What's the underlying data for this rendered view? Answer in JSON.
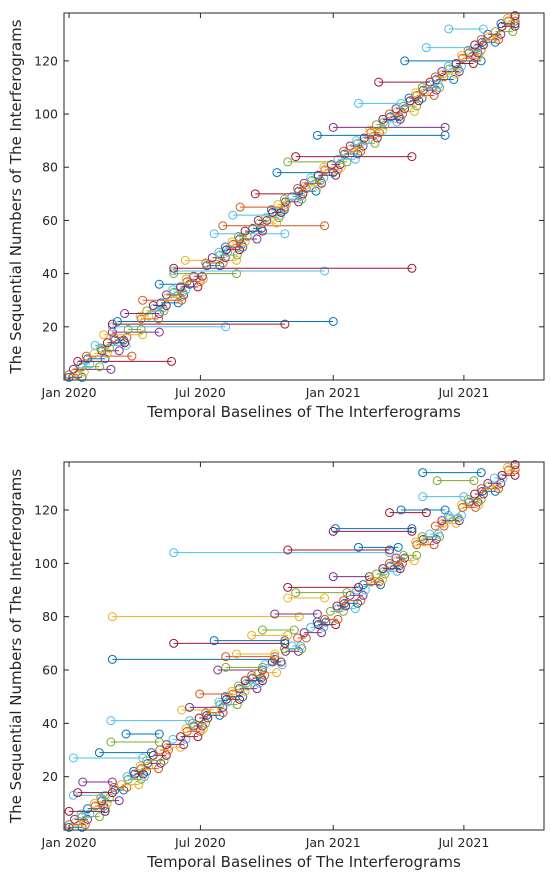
{
  "chart_data": [
    {
      "type": "line",
      "marker": "circle",
      "xlabel": "Temporal Baselines of The Interferograms",
      "ylabel": "The Sequential Numbers of The Interferograms",
      "x_axis_type": "date",
      "xlim": [
        "2019-12-25",
        "2021-10-20"
      ],
      "ylim": [
        0,
        138
      ],
      "x_ticks": [
        "2020-01-01",
        "2020-07-01",
        "2021-01-01",
        "2021-07-01"
      ],
      "x_tick_labels": [
        "Jan 2020",
        "Jul 2020",
        "Jan 2021",
        "Jul 2021"
      ],
      "y_ticks": [
        20,
        40,
        60,
        80,
        100,
        120
      ],
      "grid": false,
      "legend": "none",
      "interferogram_count": 137,
      "acquisition_start": "2020-01-01",
      "acquisition_end": "2021-09-10",
      "segments": [
        {
          "y": 2,
          "start": "2020-01-01",
          "end": "2020-01-13"
        },
        {
          "y": 4,
          "start": "2020-01-07",
          "end": "2020-02-28"
        },
        {
          "y": 7,
          "start": "2020-01-13",
          "end": "2020-05-22"
        },
        {
          "y": 9,
          "start": "2020-01-25",
          "end": "2020-03-28"
        },
        {
          "y": 13,
          "start": "2020-02-06",
          "end": "2020-03-20"
        },
        {
          "y": 17,
          "start": "2020-02-18",
          "end": "2020-04-12"
        },
        {
          "y": 18,
          "start": "2020-03-01",
          "end": "2020-05-05"
        },
        {
          "y": 20,
          "start": "2020-03-01",
          "end": "2020-08-05"
        },
        {
          "y": 21,
          "start": "2020-03-01",
          "end": "2020-10-26"
        },
        {
          "y": 22,
          "start": "2020-03-08",
          "end": "2021-01-01"
        },
        {
          "y": 25,
          "start": "2020-03-18",
          "end": "2020-05-05"
        },
        {
          "y": 30,
          "start": "2020-04-12",
          "end": "2020-06-05"
        },
        {
          "y": 36,
          "start": "2020-05-05",
          "end": "2020-06-16"
        },
        {
          "y": 40,
          "start": "2020-05-25",
          "end": "2020-08-20"
        },
        {
          "y": 41,
          "start": "2020-05-25",
          "end": "2020-12-20"
        },
        {
          "y": 42,
          "start": "2020-05-25",
          "end": "2021-04-20"
        },
        {
          "y": 45,
          "start": "2020-06-10",
          "end": "2020-08-20"
        },
        {
          "y": 55,
          "start": "2020-07-20",
          "end": "2020-10-26"
        },
        {
          "y": 58,
          "start": "2020-08-01",
          "end": "2020-12-20"
        },
        {
          "y": 62,
          "start": "2020-08-15",
          "end": "2020-10-20"
        },
        {
          "y": 65,
          "start": "2020-08-25",
          "end": "2020-10-26"
        },
        {
          "y": 70,
          "start": "2020-09-15",
          "end": "2020-11-20"
        },
        {
          "y": 78,
          "start": "2020-10-15",
          "end": "2021-01-01"
        },
        {
          "y": 82,
          "start": "2020-10-30",
          "end": "2021-01-20"
        },
        {
          "y": 84,
          "start": "2020-11-10",
          "end": "2021-04-20"
        },
        {
          "y": 92,
          "start": "2020-12-10",
          "end": "2021-06-05"
        },
        {
          "y": 95,
          "start": "2021-01-01",
          "end": "2021-06-05"
        },
        {
          "y": 104,
          "start": "2021-02-05",
          "end": "2021-04-05"
        },
        {
          "y": 112,
          "start": "2021-03-05",
          "end": "2021-05-15"
        },
        {
          "y": 120,
          "start": "2021-04-10",
          "end": "2021-07-25"
        },
        {
          "y": 125,
          "start": "2021-05-10",
          "end": "2021-07-20"
        },
        {
          "y": 132,
          "start": "2021-06-10",
          "end": "2021-07-28"
        }
      ]
    },
    {
      "type": "line",
      "marker": "circle",
      "xlabel": "Temporal Baselines of The Interferograms",
      "ylabel": "The Sequential Numbers of The Interferograms",
      "x_axis_type": "date",
      "xlim": [
        "2019-12-25",
        "2021-10-20"
      ],
      "ylim": [
        0,
        138
      ],
      "x_ticks": [
        "2020-01-01",
        "2020-07-01",
        "2021-01-01",
        "2021-07-01"
      ],
      "x_tick_labels": [
        "Jan 2020",
        "Jul 2020",
        "Jan 2021",
        "Jul 2021"
      ],
      "y_ticks": [
        20,
        40,
        60,
        80,
        100,
        120
      ],
      "grid": false,
      "legend": "none",
      "interferogram_count": 137,
      "acquisition_start": "2020-01-01",
      "acquisition_end": "2021-09-10",
      "segments": [
        {
          "y": 7,
          "start": "2020-01-01",
          "end": "2020-02-20"
        },
        {
          "y": 13,
          "start": "2020-01-07",
          "end": "2020-02-20"
        },
        {
          "y": 14,
          "start": "2020-01-13",
          "end": "2020-03-01"
        },
        {
          "y": 18,
          "start": "2020-01-20",
          "end": "2020-03-01"
        },
        {
          "y": 27,
          "start": "2020-01-07",
          "end": "2020-04-12"
        },
        {
          "y": 29,
          "start": "2020-02-12",
          "end": "2020-04-24"
        },
        {
          "y": 33,
          "start": "2020-02-28",
          "end": "2020-05-05"
        },
        {
          "y": 36,
          "start": "2020-03-20",
          "end": "2020-05-05"
        },
        {
          "y": 41,
          "start": "2020-02-28",
          "end": "2020-06-16"
        },
        {
          "y": 45,
          "start": "2020-06-05",
          "end": "2020-07-20"
        },
        {
          "y": 46,
          "start": "2020-06-16",
          "end": "2020-08-01"
        },
        {
          "y": 51,
          "start": "2020-06-30",
          "end": "2020-08-15"
        },
        {
          "y": 60,
          "start": "2020-07-25",
          "end": "2020-09-25"
        },
        {
          "y": 61,
          "start": "2020-08-05",
          "end": "2020-09-25"
        },
        {
          "y": 64,
          "start": "2020-03-01",
          "end": "2020-10-12"
        },
        {
          "y": 65,
          "start": "2020-08-05",
          "end": "2020-10-12"
        },
        {
          "y": 66,
          "start": "2020-08-20",
          "end": "2020-10-12"
        },
        {
          "y": 70,
          "start": "2020-05-25",
          "end": "2020-10-26"
        },
        {
          "y": 71,
          "start": "2020-07-20",
          "end": "2020-10-26"
        },
        {
          "y": 73,
          "start": "2020-09-10",
          "end": "2020-10-30"
        },
        {
          "y": 75,
          "start": "2020-09-25",
          "end": "2020-11-08"
        },
        {
          "y": 80,
          "start": "2020-03-01",
          "end": "2020-11-15"
        },
        {
          "y": 81,
          "start": "2020-10-12",
          "end": "2020-12-10"
        },
        {
          "y": 87,
          "start": "2020-10-30",
          "end": "2020-12-20"
        },
        {
          "y": 89,
          "start": "2020-11-10",
          "end": "2021-01-20"
        },
        {
          "y": 91,
          "start": "2020-10-30",
          "end": "2021-02-05"
        },
        {
          "y": 95,
          "start": "2021-01-01",
          "end": "2021-02-20"
        },
        {
          "y": 104,
          "start": "2020-05-25",
          "end": "2021-03-20"
        },
        {
          "y": 105,
          "start": "2020-10-30",
          "end": "2021-03-20"
        },
        {
          "y": 106,
          "start": "2021-02-05",
          "end": "2021-04-01"
        },
        {
          "y": 112,
          "start": "2021-01-01",
          "end": "2021-04-20"
        },
        {
          "y": 113,
          "start": "2021-01-04",
          "end": "2021-04-20"
        },
        {
          "y": 119,
          "start": "2021-03-20",
          "end": "2021-05-10"
        },
        {
          "y": 120,
          "start": "2021-04-05",
          "end": "2021-06-05"
        },
        {
          "y": 125,
          "start": "2021-05-05",
          "end": "2021-07-01"
        },
        {
          "y": 131,
          "start": "2021-05-25",
          "end": "2021-07-15"
        },
        {
          "y": 134,
          "start": "2021-05-05",
          "end": "2021-07-25"
        }
      ]
    }
  ]
}
